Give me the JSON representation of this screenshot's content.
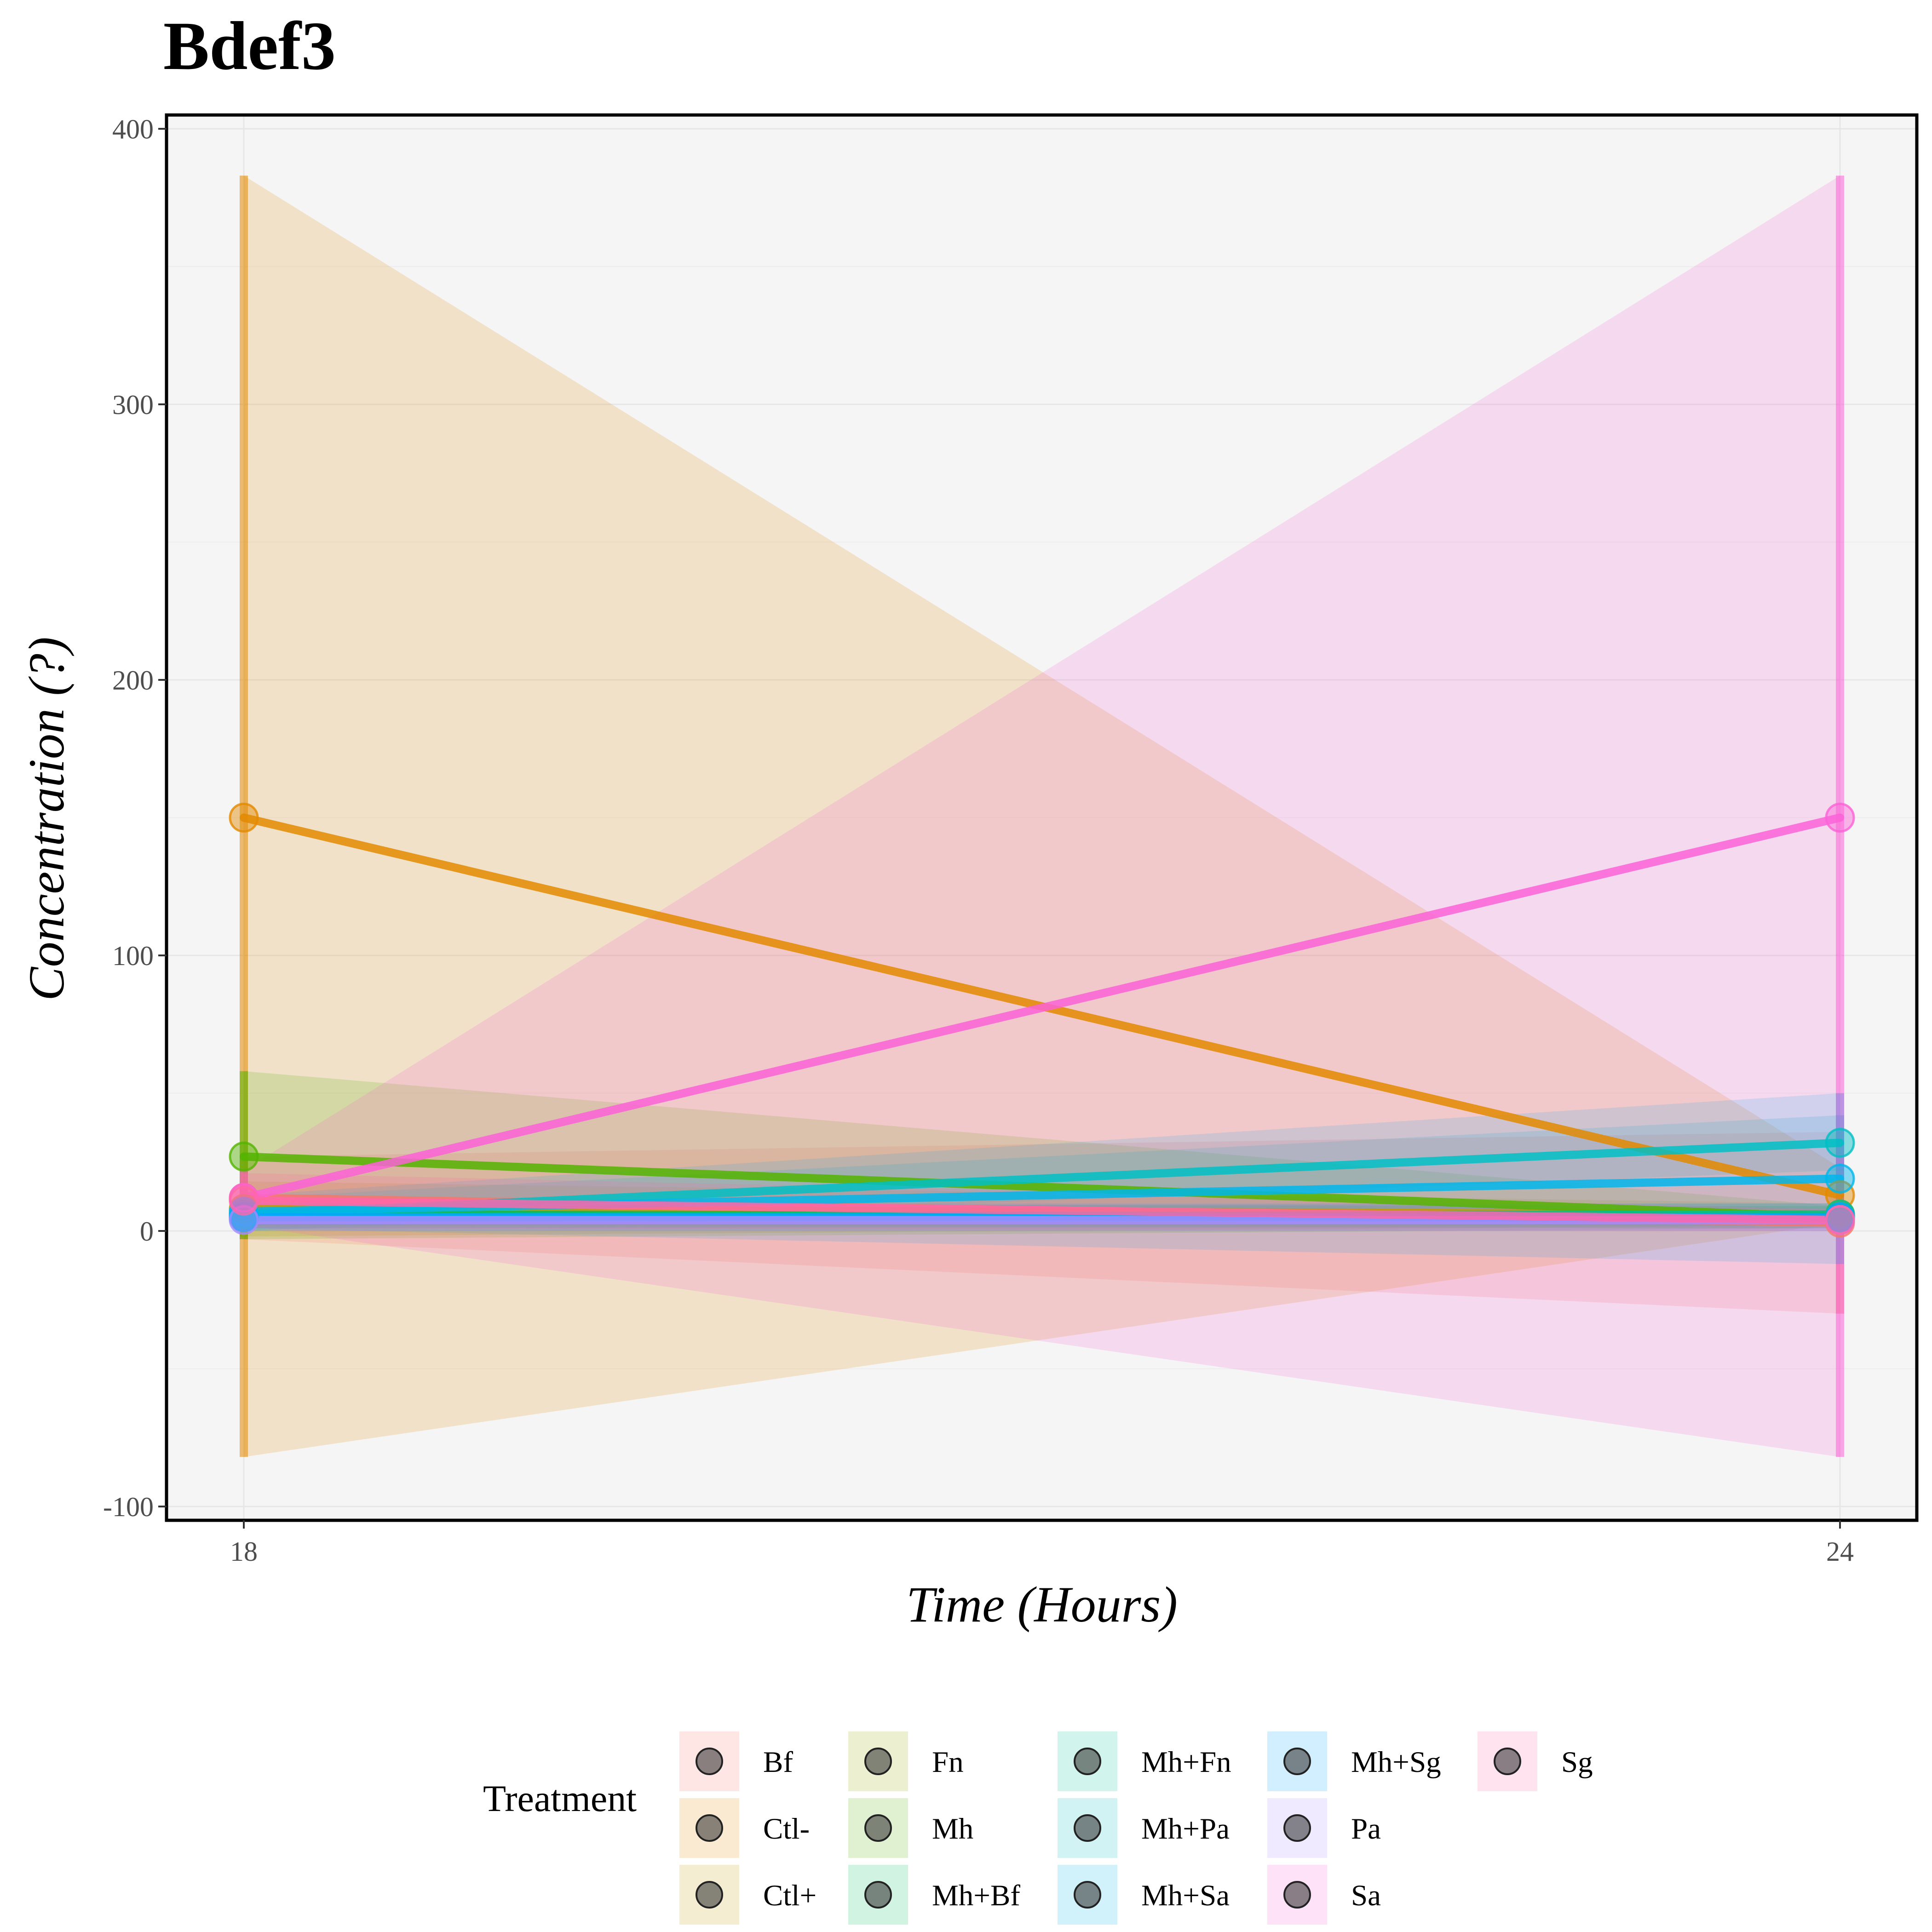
{
  "chart_data": {
    "type": "line",
    "title": "Bdef3",
    "xlabel": "Time (Hours)",
    "ylabel": "Concentration (?)",
    "x": [
      18,
      24
    ],
    "x_ticks": [
      "18",
      "24"
    ],
    "ylim": [
      -105,
      405
    ],
    "y_ticks": [
      -100,
      0,
      100,
      200,
      300,
      400
    ],
    "grid": true,
    "legend_title": "Treatment",
    "legend_position": "bottom",
    "series": [
      {
        "name": "Bf",
        "color": "#F8766D",
        "values": [
          12,
          3
        ],
        "lower": [
          -3,
          -30
        ],
        "upper": [
          27,
          36
        ]
      },
      {
        "name": "Ctl-",
        "color": "#E38900",
        "values": [
          150,
          13
        ],
        "lower": [
          -82,
          3
        ],
        "upper": [
          383,
          23
        ]
      },
      {
        "name": "Ctl+",
        "color": "#C49A00",
        "values": [
          8,
          6
        ],
        "lower": [
          -2,
          2
        ],
        "upper": [
          18,
          10
        ]
      },
      {
        "name": "Fn",
        "color": "#99A800",
        "values": [
          5,
          5
        ],
        "lower": [
          1,
          1
        ],
        "upper": [
          9,
          9
        ]
      },
      {
        "name": "Mh",
        "color": "#53B400",
        "values": [
          27,
          5
        ],
        "lower": [
          -3,
          1
        ],
        "upper": [
          58,
          9
        ]
      },
      {
        "name": "Mh+Bf",
        "color": "#00BC56",
        "values": [
          6,
          5
        ],
        "lower": [
          2,
          1
        ],
        "upper": [
          10,
          9
        ]
      },
      {
        "name": "Mh+Fn",
        "color": "#00C094",
        "values": [
          5,
          6
        ],
        "lower": [
          1,
          2
        ],
        "upper": [
          9,
          10
        ]
      },
      {
        "name": "Mh+Pa",
        "color": "#00BFC4",
        "values": [
          6,
          32
        ],
        "lower": [
          0,
          22
        ],
        "upper": [
          12,
          42
        ]
      },
      {
        "name": "Mh+Sa",
        "color": "#00B6EB",
        "values": [
          7,
          19
        ],
        "lower": [
          1,
          -12
        ],
        "upper": [
          13,
          50
        ]
      },
      {
        "name": "Mh+Sg",
        "color": "#06A4FF",
        "values": [
          5,
          5
        ],
        "lower": [
          0,
          0
        ],
        "upper": [
          10,
          10
        ]
      },
      {
        "name": "Pa",
        "color": "#A58AFF",
        "values": [
          4,
          4
        ],
        "lower": [
          0,
          0
        ],
        "upper": [
          8,
          8
        ]
      },
      {
        "name": "Sa",
        "color": "#FB61D7",
        "values": [
          12,
          150
        ],
        "lower": [
          2,
          -82
        ],
        "upper": [
          22,
          383
        ]
      },
      {
        "name": "Sg",
        "color": "#FF66A8",
        "values": [
          11,
          4
        ],
        "lower": [
          1,
          0
        ],
        "upper": [
          21,
          8
        ]
      }
    ]
  }
}
